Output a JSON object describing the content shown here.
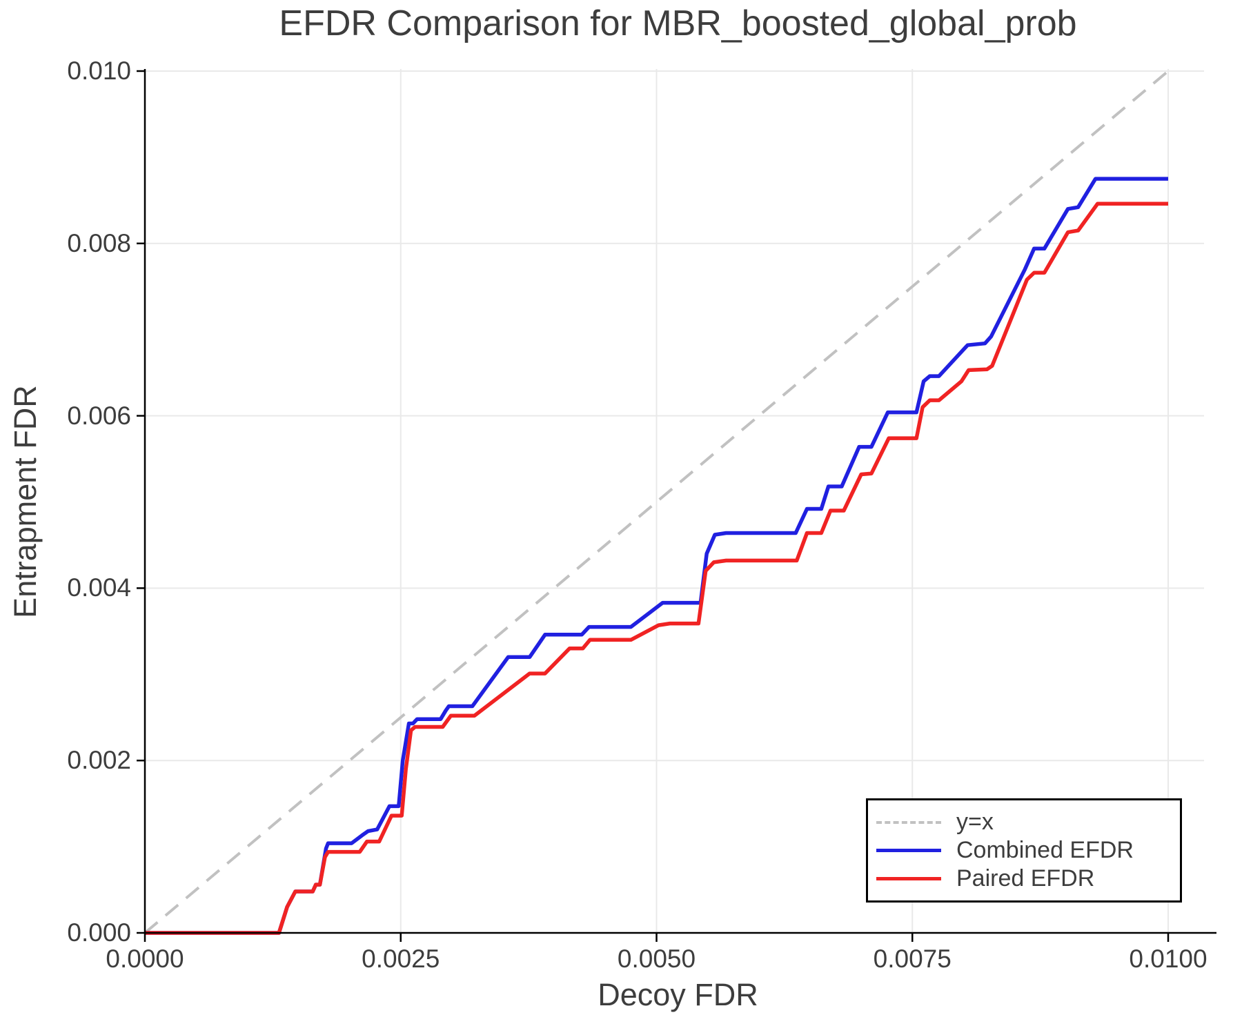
{
  "figure": {
    "title": "EFDR Comparison for MBR_boosted_global_prob",
    "xlabel": "Decoy FDR",
    "ylabel": "Entrapment FDR"
  },
  "colors": {
    "identity_line": "#c1c1c1",
    "combined_efdr": "#2020e0",
    "paired_efdr": "#f02323",
    "grid": "#e9e9e9",
    "spine": "#000000",
    "text": "#3d3d3d"
  },
  "chart_data": {
    "type": "line",
    "title": "EFDR Comparison for MBR_boosted_global_prob",
    "xlabel": "Decoy FDR",
    "ylabel": "Entrapment FDR",
    "xlim": [
      0,
      0.01035
    ],
    "ylim": [
      0,
      0.01002
    ],
    "grid": true,
    "legend_position": "lower right",
    "x_ticks": [
      0.0,
      0.0025,
      0.005,
      0.0075,
      0.01
    ],
    "x_tick_labels": [
      "0.0000",
      "0.0025",
      "0.0050",
      "0.0075",
      "0.0100"
    ],
    "y_ticks": [
      0.0,
      0.002,
      0.004,
      0.006,
      0.008,
      0.01
    ],
    "y_tick_labels": [
      "0.000",
      "0.002",
      "0.004",
      "0.006",
      "0.008",
      "0.010"
    ],
    "series": [
      {
        "name": "y=x",
        "color": "#c1c1c1",
        "style": "dashed",
        "width": 4,
        "points": [
          [
            0,
            0
          ],
          [
            0.01,
            0.01
          ]
        ]
      },
      {
        "name": "Combined EFDR",
        "color": "#2020e0",
        "style": "solid",
        "width": 5.5,
        "points": [
          [
            0,
            0
          ],
          [
            0.00131,
            0
          ],
          [
            0.00139,
            0.0003
          ],
          [
            0.00147,
            0.00048
          ],
          [
            0.00164,
            0.00048
          ],
          [
            0.00167,
            0.00056
          ],
          [
            0.00171,
            0.00056
          ],
          [
            0.00177,
            0.00098
          ],
          [
            0.00179,
            0.00104
          ],
          [
            0.00202,
            0.00104
          ],
          [
            0.00212,
            0.00113
          ],
          [
            0.00218,
            0.00118
          ],
          [
            0.00227,
            0.0012
          ],
          [
            0.00239,
            0.00147
          ],
          [
            0.00248,
            0.00147
          ],
          [
            0.00252,
            0.002
          ],
          [
            0.00258,
            0.00243
          ],
          [
            0.00262,
            0.00243
          ],
          [
            0.00266,
            0.00248
          ],
          [
            0.00289,
            0.00248
          ],
          [
            0.00294,
            0.00258
          ],
          [
            0.00297,
            0.00263
          ],
          [
            0.0032,
            0.00263
          ],
          [
            0.00355,
            0.0032
          ],
          [
            0.00376,
            0.0032
          ],
          [
            0.00391,
            0.00346
          ],
          [
            0.00427,
            0.00346
          ],
          [
            0.00434,
            0.00355
          ],
          [
            0.00475,
            0.00355
          ],
          [
            0.00506,
            0.00383
          ],
          [
            0.00543,
            0.00383
          ],
          [
            0.00549,
            0.0044
          ],
          [
            0.00557,
            0.00462
          ],
          [
            0.00568,
            0.00464
          ],
          [
            0.00636,
            0.00464
          ],
          [
            0.00647,
            0.00492
          ],
          [
            0.00661,
            0.00492
          ],
          [
            0.00668,
            0.00518
          ],
          [
            0.00681,
            0.00518
          ],
          [
            0.00698,
            0.00564
          ],
          [
            0.0071,
            0.00564
          ],
          [
            0.00726,
            0.00604
          ],
          [
            0.00754,
            0.00604
          ],
          [
            0.00761,
            0.0064
          ],
          [
            0.00767,
            0.00646
          ],
          [
            0.00776,
            0.00646
          ],
          [
            0.00804,
            0.00682
          ],
          [
            0.00821,
            0.00684
          ],
          [
            0.00827,
            0.00692
          ],
          [
            0.0086,
            0.0077
          ],
          [
            0.00869,
            0.00794
          ],
          [
            0.00879,
            0.00794
          ],
          [
            0.00902,
            0.0084
          ],
          [
            0.00912,
            0.00842
          ],
          [
            0.00929,
            0.00875
          ],
          [
            0.01,
            0.00875
          ]
        ]
      },
      {
        "name": "Paired EFDR",
        "color": "#f02323",
        "style": "solid",
        "width": 5.5,
        "points": [
          [
            0,
            0
          ],
          [
            0.00131,
            0
          ],
          [
            0.00139,
            0.0003
          ],
          [
            0.00147,
            0.00048
          ],
          [
            0.00164,
            0.00048
          ],
          [
            0.00167,
            0.00056
          ],
          [
            0.00171,
            0.00056
          ],
          [
            0.00176,
            0.00088
          ],
          [
            0.00179,
            0.00094
          ],
          [
            0.0021,
            0.00094
          ],
          [
            0.00217,
            0.00106
          ],
          [
            0.00229,
            0.00106
          ],
          [
            0.00241,
            0.00136
          ],
          [
            0.00251,
            0.00136
          ],
          [
            0.00255,
            0.0019
          ],
          [
            0.0026,
            0.00235
          ],
          [
            0.00264,
            0.00239
          ],
          [
            0.00291,
            0.00239
          ],
          [
            0.00299,
            0.00252
          ],
          [
            0.00322,
            0.00252
          ],
          [
            0.00376,
            0.00301
          ],
          [
            0.00391,
            0.00301
          ],
          [
            0.00415,
            0.0033
          ],
          [
            0.00428,
            0.0033
          ],
          [
            0.00435,
            0.0034
          ],
          [
            0.00475,
            0.0034
          ],
          [
            0.00502,
            0.00357
          ],
          [
            0.00513,
            0.00359
          ],
          [
            0.00541,
            0.00359
          ],
          [
            0.00548,
            0.0042
          ],
          [
            0.00556,
            0.0043
          ],
          [
            0.00568,
            0.00432
          ],
          [
            0.00637,
            0.00432
          ],
          [
            0.00647,
            0.00464
          ],
          [
            0.00661,
            0.00464
          ],
          [
            0.0067,
            0.0049
          ],
          [
            0.00683,
            0.0049
          ],
          [
            0.007,
            0.00532
          ],
          [
            0.0071,
            0.00533
          ],
          [
            0.00727,
            0.00574
          ],
          [
            0.00754,
            0.00574
          ],
          [
            0.0076,
            0.0061
          ],
          [
            0.00767,
            0.00618
          ],
          [
            0.00776,
            0.00618
          ],
          [
            0.00798,
            0.0064
          ],
          [
            0.00805,
            0.00653
          ],
          [
            0.00823,
            0.00654
          ],
          [
            0.00828,
            0.00658
          ],
          [
            0.00862,
            0.00758
          ],
          [
            0.00869,
            0.00766
          ],
          [
            0.00879,
            0.00766
          ],
          [
            0.00902,
            0.00813
          ],
          [
            0.00912,
            0.00815
          ],
          [
            0.00931,
            0.00846
          ],
          [
            0.01,
            0.00846
          ]
        ]
      }
    ]
  }
}
